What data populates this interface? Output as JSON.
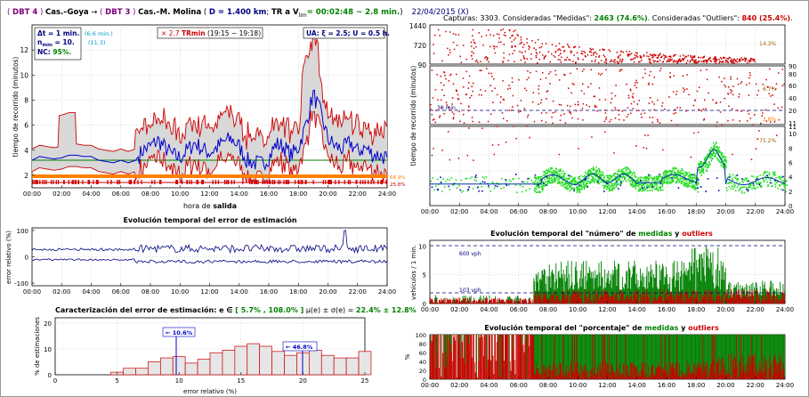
{
  "header": {
    "from_tag": "DBT 4",
    "from_name": "Cas.–Goya",
    "arrow": "→",
    "to_tag": "DBT 3",
    "to_name": "Cas.–M. Molina",
    "distance": "D = 1.400 km",
    "tr_prefix": "TR a V",
    "tr_sub": "lim",
    "tr_value": "= 00:02:48 ~ 2.8 min.",
    "tr_close": ")",
    "date": "22/04/2015 (X)"
  },
  "captures": {
    "prefix": "Capturas: 3303.   Consideradas \"Medidas\": ",
    "medidas": "2463 (74.6%)",
    "mid": ".   Consideradas \"Outliers\": ",
    "outliers": "840 (25.4%)",
    "end": "."
  },
  "colors": {
    "purple": "#7a007a",
    "navy": "#000080",
    "green": "#008000",
    "red": "#cc0000",
    "orange": "#ff8000",
    "blue": "#0000cc",
    "brightgreen": "#22cc22",
    "olive": "#a06000",
    "cyan": "#0099cc"
  },
  "main_chart": {
    "ylabel": "tiempo de recorrido (minutos)",
    "xlabel_prefix": "hora de ",
    "xlabel_bold": "salida",
    "yticks": [
      "2",
      "4",
      "6",
      "8",
      "10",
      "12"
    ],
    "xticks": [
      "00:00",
      "02:00",
      "04:00",
      "06:00",
      "08:00",
      "10:00",
      "12:00",
      "14:00",
      "16:00",
      "18:00",
      "20:00",
      "22:00",
      "24:00"
    ],
    "pct_orange": "64.9%",
    "pct_red": "25.8%",
    "box1": {
      "delta": "Δt = 1 min.",
      "delta_paren": "(6.6 min.)",
      "nmin": "n",
      "nmin_sub": "min",
      "nmin_val": " = 10.",
      "nmin_paren": "(11.3)",
      "nc": "NC: ",
      "nc_val": "95%."
    },
    "box2": {
      "prefix": "× 2.7 ",
      "bold": "TRmin",
      "suffix": " (19:15 − 19:18)"
    },
    "box3": {
      "text": "UA: ξ = 2.5; U = 0.5 h."
    }
  },
  "error_chart": {
    "title": "Evolución temporal del error de estimación",
    "ylabel": "error relativo (%)",
    "yticks": [
      "100",
      "0",
      "-100"
    ],
    "xticks": [
      "00:00",
      "02:00",
      "04:00",
      "06:00",
      "08:00",
      "10:00",
      "12:00",
      "14:00",
      "16:00",
      "18:00",
      "20:00",
      "22:00",
      "24:00"
    ]
  },
  "hist_chart": {
    "title_prefix": "Caracterización del error de estimación:  e ∈ ",
    "title_range": "[ 5.7% , 108.0% ]",
    "title_mid": "   μ(e) ± σ(e) = ",
    "title_val": "22.4% ± 12.8%",
    "ylabel": "% de estimaciones",
    "xlabel": "error relativo (%)",
    "yticks": [
      "20",
      "10",
      "0"
    ],
    "xticks": [
      "0",
      "5",
      "10",
      "15",
      "20",
      "25"
    ],
    "ann1": "← 10.6%",
    "ann2": "← 46.8%"
  },
  "scatter_chart": {
    "ylabel": "tiempo de recorrido (minutos)",
    "top_yticks": [
      "1440",
      "720",
      "90"
    ],
    "mid_yticks": [
      "90",
      "80",
      "60",
      "40",
      "20",
      "11"
    ],
    "bot_yticks": [
      "11",
      "10",
      "8",
      "6",
      "4",
      "2",
      "0"
    ],
    "top_pct": "14.3%",
    "mid_pct1": "6.7%",
    "mid_pct2": "3.8%",
    "bot_pct": "75.2%",
    "ref_label": "30 min.",
    "xticks": [
      "00:00",
      "02:00",
      "04:00",
      "06:00",
      "08:00",
      "10:00",
      "12:00",
      "14:00",
      "16:00",
      "18:00",
      "20:00",
      "22:00",
      "24:00"
    ]
  },
  "count_chart": {
    "title_prefix": "Evolución temporal del \"número\" de ",
    "title_medidas": "medidas",
    "title_y": " y ",
    "title_outliers": "outliers",
    "ylabel": "vehículos / 1 min.",
    "yticks": [
      "10",
      "5",
      "0"
    ],
    "ref1": "600 vph",
    "ref2": "103 vph",
    "xticks": [
      "00:00",
      "02:00",
      "04:00",
      "06:00",
      "08:00",
      "10:00",
      "12:00",
      "14:00",
      "16:00",
      "18:00",
      "20:00",
      "22:00",
      "24:00"
    ]
  },
  "pct_chart": {
    "title_prefix": "Evolución temporal del \"porcentaje\" de ",
    "title_medidas": "medidas",
    "title_y": " y ",
    "title_outliers": "outliers",
    "ylabel": "%",
    "yticks": [
      "100",
      "80",
      "60",
      "40",
      "20",
      "0"
    ],
    "xticks": [
      "00:00",
      "02:00",
      "04:00",
      "06:00",
      "08:00",
      "10:00",
      "12:00",
      "14:00",
      "16:00",
      "18:00",
      "20:00",
      "22:00",
      "24:00"
    ]
  },
  "chart_data": [
    {
      "type": "line",
      "title": "",
      "xlabel": "hora de salida",
      "ylabel": "tiempo de recorrido (minutos)",
      "ylim": [
        1,
        14
      ],
      "xlim_hours": [
        0,
        24
      ],
      "series": [
        {
          "x_hours": [
            0.0,
            0.5,
            1.0,
            1.5,
            2.0,
            2.5,
            3.0,
            3.5,
            4.0,
            4.5,
            5.0,
            5.5,
            6.0,
            6.5,
            7.0,
            7.5,
            8.0,
            8.5,
            9.0,
            9.5,
            10.0,
            10.5,
            11.0,
            11.5,
            12.0,
            12.5,
            13.0,
            13.5,
            14.0,
            14.5,
            15.0,
            15.5,
            16.0,
            16.5,
            17.0,
            17.5,
            18.0,
            18.5,
            19.0,
            19.5,
            20.0,
            20.5,
            21.0,
            21.5,
            22.0,
            22.5,
            23.0,
            23.5,
            24.0
          ],
          "values": [
            3.2,
            3.5,
            3.4,
            3.3,
            3.4,
            3.6,
            3.6,
            3.5,
            3.5,
            3.2,
            3.1,
            3.0,
            3.2,
            3.0,
            3.2,
            4.0,
            4.3,
            4.8,
            4.2,
            3.6,
            3.4,
            4.0,
            4.6,
            4.1,
            3.8,
            4.2,
            4.7,
            4.9,
            4.3,
            3.2,
            3.0,
            2.9,
            3.4,
            4.5,
            4.3,
            3.6,
            4.2,
            6.0,
            8.5,
            7.0,
            4.9,
            4.3,
            4.1,
            4.6,
            3.9,
            4.2,
            3.7,
            3.6,
            3.4
          ]
        }
      ]
    },
    {
      "type": "line",
      "title": "Evolución temporal del error de estimación",
      "ylabel": "error relativo (%)",
      "ylim": [
        -110,
        110
      ]
    },
    {
      "type": "bar",
      "title": "Caracterización del error de estimación:  e ∈ [ 5.7% , 108.0% ]   μ(e) ± σ(e) = 22.4% ± 12.8%",
      "xlabel": "error relativo (%)",
      "ylabel": "% de estimaciones",
      "ylim": [
        0,
        22
      ],
      "categories": [
        "5",
        "6",
        "7",
        "8",
        "9",
        "10",
        "11",
        "12",
        "13",
        "14",
        "15",
        "16",
        "17",
        "18",
        "19",
        "20",
        "21",
        "22",
        "23",
        "24",
        "25"
      ],
      "values": [
        1.0,
        2.5,
        2.5,
        5.0,
        6.5,
        7.0,
        4.5,
        6.0,
        8.5,
        9.5,
        11.0,
        12.0,
        11.0,
        9.0,
        7.5,
        8.5,
        9.5,
        7.5,
        6.5,
        6.5,
        9.0
      ]
    },
    {
      "type": "scatter",
      "ylabel": "tiempo de recorrido (minutos)"
    },
    {
      "type": "bar",
      "title": "Evolución temporal del \"número\" de medidas y outliers",
      "ylabel": "vehículos / 1 min.",
      "ylim": [
        0,
        11
      ]
    },
    {
      "type": "area",
      "title": "Evolución temporal del \"porcentaje\" de medidas y outliers",
      "ylabel": "%",
      "ylim": [
        0,
        100
      ]
    }
  ]
}
